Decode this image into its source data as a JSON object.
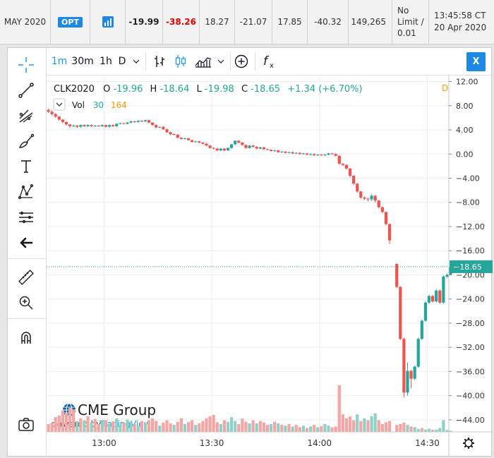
{
  "quote_row": {
    "contract": "MAY 2020",
    "opt_badge": "OPT",
    "chart_icon": "bar-chart-icon",
    "last": "-19.99",
    "change": "-38.26",
    "prior_settle": "18.27",
    "open": "-21.07",
    "high": "17.85",
    "low": "-40.32",
    "volume": "149,265",
    "hi_lo_limit": [
      "No",
      "Limit /",
      "0.01"
    ],
    "updated": [
      "13:45:58 CT",
      "20 Apr 2020"
    ],
    "colors": {
      "last": "#222222",
      "change": "#e00000"
    }
  },
  "toolbar": {
    "intervals": [
      "1m",
      "30m",
      "1h",
      "D"
    ],
    "icons": [
      "chevron-down-icon",
      "bar-style-icon",
      "candle-style-icon",
      "area-style-icon",
      "chevron-down-icon",
      "compare-plus-icon",
      "indicators-fx-icon"
    ],
    "close_label": "X"
  },
  "drawing_tools": [
    "crosshair-icon",
    "trend-line-icon",
    "pitchfork-icon",
    "brush-icon",
    "text-icon",
    "pattern-icon",
    "measure-lines-icon",
    "back-arrow-icon",
    "ruler-icon",
    "zoom-icon",
    "magnet-icon",
    "camera-icon"
  ],
  "legend": {
    "symbol": "CLK2020",
    "open_label": "O",
    "open": "-19.96",
    "high_label": "H",
    "high": "-18.64",
    "low_label": "L",
    "low": "-19.98",
    "close_label": "C",
    "close": "-18.65",
    "change": "+1.34 (+6.70%)",
    "interval_flag": "D",
    "vol_label": "Vol",
    "vol_ma": "30",
    "vol_value": "164"
  },
  "watermark": {
    "brand": "CME Group",
    "powered": "powered by",
    "tv": "TradingView"
  },
  "colors": {
    "up": "#26a69a",
    "down": "#ef5350",
    "up_vol": "#8fd1c9",
    "down_vol": "#f4a5a4",
    "last_price_line": "#26a69a",
    "grid": "#eeeeee"
  },
  "chart_data": {
    "type": "candlestick",
    "symbol": "CLK2020",
    "ylim": [
      -46,
      13
    ],
    "y_ticks": [
      12,
      8,
      4,
      0,
      -4,
      -8,
      -12,
      -16,
      -20,
      -24,
      -28,
      -32,
      -36,
      -40,
      -44
    ],
    "y_tick_labels": [
      "12.00",
      "8.00",
      "4.00",
      "0.00",
      "−4.00",
      "−8.00",
      "−12.00",
      "−16.00",
      "−20.00",
      "−24.00",
      "−28.00",
      "−32.00",
      "−36.00",
      "−40.00",
      "−44.00"
    ],
    "x_tick_labels": [
      "13:00",
      "13:30",
      "14:00",
      "14:30"
    ],
    "x_tick_minutes": [
      0,
      30,
      60,
      90
    ],
    "x_range_minutes": [
      -16,
      96
    ],
    "last_price": -18.65,
    "last_price_label": "−18.65",
    "grid": true,
    "candles": [
      [
        -15.5,
        7.3,
        7.0,
        7.5,
        6.8
      ],
      [
        -14.5,
        7.0,
        6.6,
        7.2,
        6.4
      ],
      [
        -13.5,
        6.6,
        6.2,
        6.8,
        6.0
      ],
      [
        -12.5,
        6.2,
        5.7,
        6.3,
        5.5
      ],
      [
        -11.5,
        5.7,
        5.3,
        5.8,
        5.1
      ],
      [
        -10.5,
        5.3,
        4.9,
        5.4,
        4.7
      ],
      [
        -9.5,
        4.9,
        4.6,
        5.0,
        4.4
      ],
      [
        -8.5,
        4.6,
        4.7,
        4.9,
        4.5
      ],
      [
        -7.5,
        4.7,
        4.5,
        4.8,
        4.3
      ],
      [
        -6.5,
        4.5,
        4.8,
        4.9,
        4.4
      ],
      [
        -5.5,
        4.8,
        4.6,
        4.9,
        4.5
      ],
      [
        -4.5,
        4.6,
        4.8,
        4.9,
        4.5
      ],
      [
        -3.5,
        4.8,
        4.6,
        4.9,
        4.5
      ],
      [
        -2.5,
        4.6,
        4.7,
        4.8,
        4.5
      ],
      [
        -1.5,
        4.7,
        4.6,
        4.8,
        4.5
      ],
      [
        -0.5,
        4.6,
        4.8,
        4.9,
        4.5
      ],
      [
        0.5,
        4.8,
        4.5,
        4.9,
        4.4
      ],
      [
        1.5,
        4.5,
        4.8,
        4.9,
        4.4
      ],
      [
        2.5,
        4.8,
        4.6,
        4.9,
        4.5
      ],
      [
        3.5,
        4.6,
        5.0,
        5.1,
        4.5
      ],
      [
        4.5,
        5.0,
        5.1,
        5.2,
        4.9
      ],
      [
        5.5,
        5.1,
        5.0,
        5.2,
        4.9
      ],
      [
        6.5,
        5.0,
        5.2,
        5.3,
        4.9
      ],
      [
        7.5,
        5.2,
        5.4,
        5.5,
        5.1
      ],
      [
        8.5,
        5.4,
        5.3,
        5.5,
        5.2
      ],
      [
        9.5,
        5.3,
        5.5,
        5.6,
        5.2
      ],
      [
        10.5,
        5.5,
        5.4,
        5.6,
        5.3
      ],
      [
        11.5,
        5.4,
        5.6,
        5.7,
        5.3
      ],
      [
        12.5,
        5.6,
        5.2,
        5.7,
        5.1
      ],
      [
        13.5,
        5.2,
        4.8,
        5.3,
        4.7
      ],
      [
        14.5,
        4.8,
        4.4,
        4.9,
        4.3
      ],
      [
        15.5,
        4.4,
        4.5,
        4.6,
        4.3
      ],
      [
        16.5,
        4.5,
        4.1,
        4.6,
        4.0
      ],
      [
        17.5,
        4.1,
        3.6,
        4.2,
        3.5
      ],
      [
        18.5,
        3.6,
        3.3,
        3.7,
        3.1
      ],
      [
        19.5,
        3.3,
        3.2,
        3.4,
        3.1
      ],
      [
        20.5,
        3.2,
        2.7,
        3.3,
        2.6
      ],
      [
        21.5,
        2.7,
        2.5,
        2.8,
        2.4
      ],
      [
        22.5,
        2.5,
        2.6,
        2.7,
        2.4
      ],
      [
        23.5,
        2.6,
        2.3,
        2.7,
        2.2
      ],
      [
        24.5,
        2.3,
        2.0,
        2.4,
        1.9
      ],
      [
        25.5,
        2.0,
        2.1,
        2.2,
        1.9
      ],
      [
        26.5,
        2.1,
        1.9,
        2.2,
        1.8
      ],
      [
        27.5,
        1.9,
        1.7,
        2.0,
        1.6
      ],
      [
        28.5,
        1.7,
        1.4,
        1.8,
        1.3
      ],
      [
        29.5,
        1.4,
        1.0,
        1.5,
        0.9
      ],
      [
        30.5,
        1.0,
        0.9,
        1.1,
        0.8
      ],
      [
        31.5,
        0.9,
        0.6,
        1.0,
        0.5
      ],
      [
        32.5,
        0.6,
        0.9,
        1.0,
        0.5
      ],
      [
        33.5,
        0.9,
        0.6,
        1.0,
        0.5
      ],
      [
        34.5,
        0.6,
        1.0,
        1.1,
        0.5
      ],
      [
        35.5,
        1.0,
        1.6,
        1.7,
        0.9
      ],
      [
        36.5,
        1.6,
        2.2,
        2.3,
        1.5
      ],
      [
        37.5,
        2.2,
        1.9,
        2.3,
        1.8
      ],
      [
        38.5,
        1.9,
        1.5,
        2.0,
        1.4
      ],
      [
        39.5,
        1.5,
        1.0,
        1.6,
        0.9
      ],
      [
        40.5,
        1.0,
        1.4,
        1.5,
        0.9
      ],
      [
        41.5,
        1.4,
        1.2,
        1.5,
        1.1
      ],
      [
        42.5,
        1.2,
        0.9,
        1.3,
        0.8
      ],
      [
        43.5,
        0.9,
        1.1,
        1.2,
        0.8
      ],
      [
        44.5,
        1.1,
        0.8,
        1.2,
        0.7
      ],
      [
        45.5,
        0.8,
        0.7,
        0.9,
        0.6
      ],
      [
        46.5,
        0.7,
        0.5,
        0.8,
        0.4
      ],
      [
        47.5,
        0.5,
        0.6,
        0.7,
        0.4
      ],
      [
        48.5,
        0.6,
        0.3,
        0.7,
        0.2
      ],
      [
        49.5,
        0.3,
        0.4,
        0.5,
        0.2
      ],
      [
        50.5,
        0.4,
        0.2,
        0.5,
        0.1
      ],
      [
        51.5,
        0.2,
        0.3,
        0.4,
        0.1
      ],
      [
        52.5,
        0.3,
        0.1,
        0.4,
        0.0
      ],
      [
        53.5,
        0.1,
        0.2,
        0.3,
        0.0
      ],
      [
        54.5,
        0.2,
        0.0,
        0.3,
        -0.1
      ],
      [
        55.5,
        0.0,
        0.1,
        0.2,
        -0.1
      ],
      [
        56.5,
        0.1,
        -0.1,
        0.2,
        -0.2
      ],
      [
        57.5,
        -0.1,
        0.0,
        0.1,
        -0.2
      ],
      [
        58.5,
        0.0,
        -0.2,
        0.1,
        -0.3
      ],
      [
        59.5,
        -0.2,
        -0.1,
        0.0,
        -0.3
      ],
      [
        60.5,
        -0.1,
        -0.2,
        0.0,
        -0.3
      ],
      [
        61.5,
        -0.2,
        -0.1,
        0.0,
        -0.3
      ],
      [
        62.5,
        -0.1,
        0.1,
        0.2,
        -0.2
      ],
      [
        63.5,
        0.1,
        0.0,
        0.2,
        -0.1
      ],
      [
        64.5,
        0.0,
        -0.3,
        0.1,
        -0.4
      ],
      [
        65.5,
        -0.3,
        -1.6,
        -0.2,
        -1.8
      ],
      [
        66.5,
        -1.6,
        -1.8,
        -1.5,
        -2.0
      ],
      [
        67.5,
        -1.8,
        -2.4,
        -1.7,
        -2.6
      ],
      [
        68.5,
        -2.4,
        -3.6,
        -2.3,
        -3.8
      ],
      [
        69.5,
        -3.6,
        -4.9,
        -3.5,
        -5.1
      ],
      [
        70.5,
        -4.9,
        -6.2,
        -4.8,
        -6.4
      ],
      [
        71.5,
        -6.2,
        -7.2,
        -6.1,
        -7.4
      ],
      [
        72.5,
        -7.2,
        -7.4,
        -7.0,
        -7.6
      ],
      [
        73.5,
        -7.4,
        -7.5,
        -7.2,
        -7.8
      ],
      [
        74.5,
        -7.5,
        -6.9,
        -6.7,
        -7.8
      ],
      [
        75.5,
        -6.9,
        -7.7,
        -6.8,
        -8.0
      ],
      [
        76.5,
        -7.7,
        -8.8,
        -7.6,
        -9.0
      ],
      [
        77.5,
        -8.8,
        -9.6,
        -8.7,
        -9.8
      ],
      [
        78.5,
        -9.6,
        -11.6,
        -9.5,
        -11.8
      ],
      [
        79.5,
        -11.6,
        -14.3,
        -11.5,
        -14.9
      ],
      [
        81.5,
        -18.2,
        -22.0,
        -18.1,
        -22.2
      ],
      [
        82.5,
        -22.0,
        -30.6,
        -21.9,
        -30.8
      ],
      [
        83.5,
        -30.6,
        -39.5,
        -30.4,
        -40.3
      ],
      [
        84.5,
        -39.5,
        -35.9,
        -34.5,
        -40.0
      ],
      [
        85.5,
        -35.9,
        -37.2,
        -35.7,
        -38.8
      ],
      [
        86.5,
        -37.2,
        -35.2,
        -35.0,
        -37.4
      ],
      [
        87.5,
        -35.2,
        -30.6,
        -30.4,
        -35.4
      ],
      [
        88.5,
        -30.6,
        -27.6,
        -27.4,
        -30.8
      ],
      [
        89.5,
        -27.6,
        -24.6,
        -24.4,
        -27.8
      ],
      [
        90.5,
        -24.6,
        -23.5,
        -23.3,
        -24.8
      ],
      [
        91.5,
        -23.5,
        -24.4,
        -23.3,
        -24.6
      ],
      [
        92.5,
        -24.4,
        -22.6,
        -22.4,
        -24.6
      ],
      [
        93.5,
        -22.6,
        -24.6,
        -22.4,
        -24.8
      ],
      [
        94.5,
        -24.6,
        -20.3,
        -20.1,
        -24.8
      ],
      [
        95.5,
        -20.3,
        -20.0,
        -19.8,
        -20.5
      ],
      [
        96.5,
        -19.96,
        -18.65,
        -18.64,
        -19.98
      ]
    ],
    "volumes": [
      [
        -15.5,
        20,
        0
      ],
      [
        -14.5,
        24,
        0
      ],
      [
        -13.5,
        38,
        0
      ],
      [
        -12.5,
        42,
        0
      ],
      [
        -11.5,
        55,
        0
      ],
      [
        -10.5,
        48,
        0
      ],
      [
        -9.5,
        62,
        0
      ],
      [
        -8.5,
        58,
        0
      ],
      [
        -7.5,
        28,
        1
      ],
      [
        -6.5,
        35,
        0
      ],
      [
        -5.5,
        30,
        1
      ],
      [
        -4.5,
        40,
        0
      ],
      [
        -3.5,
        25,
        1
      ],
      [
        -2.5,
        33,
        0
      ],
      [
        -1.5,
        20,
        0
      ],
      [
        -0.5,
        26,
        1
      ],
      [
        0.5,
        30,
        0
      ],
      [
        1.5,
        22,
        1
      ],
      [
        2.5,
        27,
        0
      ],
      [
        3.5,
        35,
        1
      ],
      [
        4.5,
        18,
        1
      ],
      [
        5.5,
        24,
        0
      ],
      [
        6.5,
        32,
        1
      ],
      [
        7.5,
        26,
        1
      ],
      [
        8.5,
        20,
        0
      ],
      [
        9.5,
        15,
        1
      ],
      [
        10.5,
        28,
        0
      ],
      [
        11.5,
        22,
        1
      ],
      [
        12.5,
        30,
        0
      ],
      [
        13.5,
        35,
        0
      ],
      [
        14.5,
        28,
        0
      ],
      [
        15.5,
        16,
        1
      ],
      [
        16.5,
        24,
        0
      ],
      [
        17.5,
        30,
        0
      ],
      [
        18.5,
        22,
        0
      ],
      [
        19.5,
        18,
        1
      ],
      [
        20.5,
        26,
        0
      ],
      [
        21.5,
        35,
        0
      ],
      [
        22.5,
        20,
        1
      ],
      [
        23.5,
        25,
        0
      ],
      [
        24.5,
        30,
        0
      ],
      [
        25.5,
        18,
        1
      ],
      [
        26.5,
        22,
        0
      ],
      [
        27.5,
        28,
        0
      ],
      [
        28.5,
        35,
        0
      ],
      [
        29.5,
        40,
        0
      ],
      [
        30.5,
        44,
        0
      ],
      [
        31.5,
        25,
        0
      ],
      [
        32.5,
        20,
        1
      ],
      [
        33.5,
        30,
        0
      ],
      [
        34.5,
        26,
        1
      ],
      [
        35.5,
        38,
        1
      ],
      [
        36.5,
        28,
        1
      ],
      [
        37.5,
        20,
        0
      ],
      [
        38.5,
        34,
        0
      ],
      [
        39.5,
        26,
        0
      ],
      [
        40.5,
        22,
        1
      ],
      [
        41.5,
        30,
        0
      ],
      [
        42.5,
        22,
        1
      ],
      [
        43.5,
        28,
        0
      ],
      [
        44.5,
        24,
        0
      ],
      [
        45.5,
        18,
        0
      ],
      [
        46.5,
        20,
        1
      ],
      [
        47.5,
        26,
        0
      ],
      [
        48.5,
        22,
        1
      ],
      [
        49.5,
        18,
        0
      ],
      [
        50.5,
        16,
        1
      ],
      [
        51.5,
        20,
        0
      ],
      [
        52.5,
        14,
        1
      ],
      [
        53.5,
        18,
        0
      ],
      [
        54.5,
        12,
        0
      ],
      [
        55.5,
        16,
        1
      ],
      [
        56.5,
        10,
        0
      ],
      [
        57.5,
        14,
        1
      ],
      [
        58.5,
        18,
        0
      ],
      [
        59.5,
        12,
        1
      ],
      [
        60.5,
        15,
        0
      ],
      [
        61.5,
        20,
        1
      ],
      [
        62.5,
        16,
        1
      ],
      [
        63.5,
        12,
        0
      ],
      [
        64.5,
        14,
        0
      ],
      [
        65.5,
        120,
        0
      ],
      [
        66.5,
        45,
        0
      ],
      [
        67.5,
        35,
        0
      ],
      [
        68.5,
        40,
        0
      ],
      [
        69.5,
        30,
        0
      ],
      [
        70.5,
        45,
        1
      ],
      [
        71.5,
        28,
        0
      ],
      [
        72.5,
        35,
        1
      ],
      [
        73.5,
        30,
        0
      ],
      [
        74.5,
        40,
        1
      ],
      [
        75.5,
        48,
        1
      ],
      [
        76.5,
        30,
        0
      ],
      [
        77.5,
        20,
        0
      ],
      [
        78.5,
        25,
        0
      ],
      [
        79.5,
        28,
        0
      ],
      [
        81.5,
        18,
        0
      ],
      [
        82.5,
        20,
        0
      ],
      [
        83.5,
        24,
        0
      ],
      [
        84.5,
        18,
        1
      ],
      [
        85.5,
        14,
        0
      ],
      [
        86.5,
        12,
        1
      ],
      [
        87.5,
        8,
        1
      ],
      [
        88.5,
        10,
        0
      ],
      [
        89.5,
        6,
        1
      ],
      [
        90.5,
        8,
        1
      ],
      [
        91.5,
        5,
        0
      ],
      [
        92.5,
        6,
        1
      ],
      [
        93.5,
        10,
        1
      ],
      [
        94.5,
        30,
        1
      ],
      [
        95.5,
        5,
        1
      ],
      [
        96.5,
        3,
        1
      ]
    ]
  }
}
